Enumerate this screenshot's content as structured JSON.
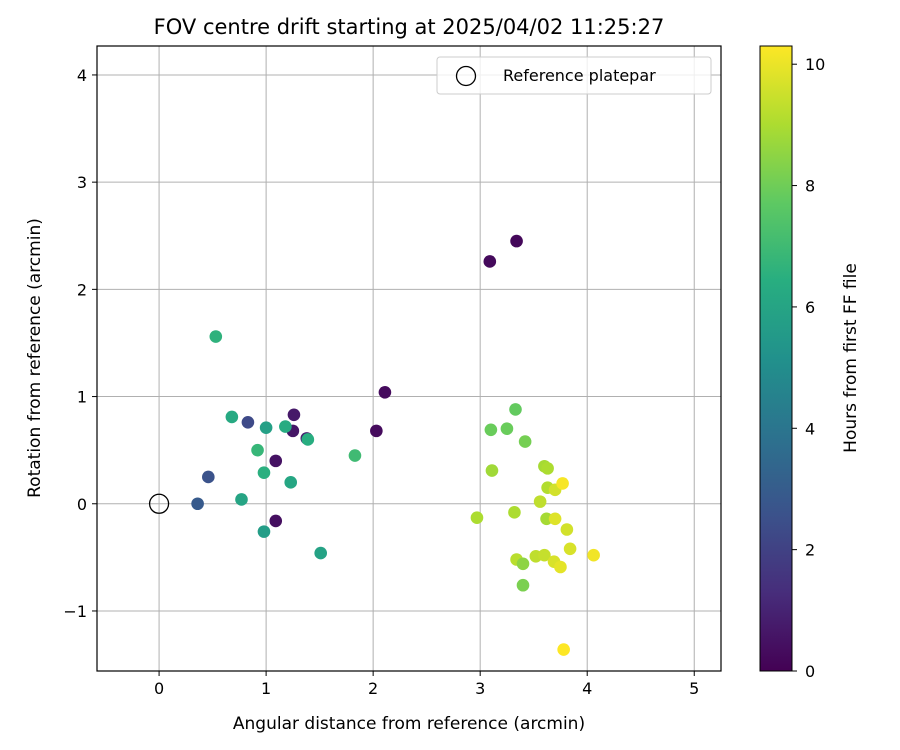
{
  "chart_data": {
    "type": "scatter",
    "title": "FOV centre drift starting at 2025/04/02 11:25:27",
    "xlabel": "Angular distance from reference (arcmin)",
    "ylabel": "Rotation from reference (arcmin)",
    "xlim": [
      -0.58,
      5.25
    ],
    "ylim": [
      -1.56,
      4.27
    ],
    "xticks": [
      0,
      1,
      2,
      3,
      4,
      5
    ],
    "yticks": [
      -1,
      0,
      1,
      2,
      3,
      4
    ],
    "grid": true,
    "legend": {
      "placement": "top-right",
      "entries": [
        "Reference platepar"
      ]
    },
    "reference": {
      "x": 0,
      "y": 0,
      "label": "Reference platepar"
    },
    "colorbar": {
      "label": "Hours from first FF file",
      "colormap": "viridis",
      "range": [
        0,
        10.3
      ],
      "ticks": [
        0,
        2,
        4,
        6,
        8,
        10
      ]
    },
    "points": [
      {
        "x": 3.34,
        "y": 2.45,
        "c": 0.2
      },
      {
        "x": 3.09,
        "y": 2.26,
        "c": 0.25
      },
      {
        "x": 2.11,
        "y": 1.04,
        "c": 0.3
      },
      {
        "x": 2.03,
        "y": 0.68,
        "c": 0.3
      },
      {
        "x": 1.26,
        "y": 0.83,
        "c": 0.7
      },
      {
        "x": 1.25,
        "y": 0.68,
        "c": 0.6
      },
      {
        "x": 1.09,
        "y": 0.4,
        "c": 0.5
      },
      {
        "x": 1.09,
        "y": -0.16,
        "c": 0.4
      },
      {
        "x": 1.38,
        "y": 0.61,
        "c": 0.9
      },
      {
        "x": 0.83,
        "y": 0.76,
        "c": 2.3
      },
      {
        "x": 0.46,
        "y": 0.25,
        "c": 2.6
      },
      {
        "x": 0.36,
        "y": 0.0,
        "c": 2.9
      },
      {
        "x": 0.53,
        "y": 1.56,
        "c": 6.6
      },
      {
        "x": 0.68,
        "y": 0.81,
        "c": 6.2
      },
      {
        "x": 1.0,
        "y": 0.71,
        "c": 5.8
      },
      {
        "x": 0.92,
        "y": 0.5,
        "c": 6.8
      },
      {
        "x": 0.98,
        "y": 0.29,
        "c": 6.5
      },
      {
        "x": 0.77,
        "y": 0.04,
        "c": 6.0
      },
      {
        "x": 0.98,
        "y": -0.26,
        "c": 5.7
      },
      {
        "x": 1.18,
        "y": 0.72,
        "c": 6.3
      },
      {
        "x": 1.39,
        "y": 0.6,
        "c": 6.4
      },
      {
        "x": 1.23,
        "y": 0.2,
        "c": 6.1
      },
      {
        "x": 1.51,
        "y": -0.46,
        "c": 5.9
      },
      {
        "x": 1.83,
        "y": 0.45,
        "c": 7.0
      },
      {
        "x": 3.33,
        "y": 0.88,
        "c": 7.8
      },
      {
        "x": 3.1,
        "y": 0.69,
        "c": 7.9
      },
      {
        "x": 3.25,
        "y": 0.7,
        "c": 7.9
      },
      {
        "x": 3.42,
        "y": 0.58,
        "c": 8.1
      },
      {
        "x": 3.11,
        "y": 0.31,
        "c": 8.8
      },
      {
        "x": 3.6,
        "y": 0.35,
        "c": 8.9
      },
      {
        "x": 3.63,
        "y": 0.33,
        "c": 9.0
      },
      {
        "x": 3.63,
        "y": 0.15,
        "c": 9.1
      },
      {
        "x": 3.7,
        "y": 0.13,
        "c": 9.6
      },
      {
        "x": 3.77,
        "y": 0.19,
        "c": 10.2
      },
      {
        "x": 3.56,
        "y": 0.02,
        "c": 9.3
      },
      {
        "x": 2.97,
        "y": -0.13,
        "c": 9.0
      },
      {
        "x": 3.32,
        "y": -0.08,
        "c": 9.0
      },
      {
        "x": 3.62,
        "y": -0.14,
        "c": 8.9
      },
      {
        "x": 3.7,
        "y": -0.14,
        "c": 9.8
      },
      {
        "x": 3.81,
        "y": -0.24,
        "c": 9.6
      },
      {
        "x": 3.84,
        "y": -0.42,
        "c": 9.7
      },
      {
        "x": 4.06,
        "y": -0.48,
        "c": 10.1
      },
      {
        "x": 3.34,
        "y": -0.52,
        "c": 9.2
      },
      {
        "x": 3.52,
        "y": -0.49,
        "c": 9.3
      },
      {
        "x": 3.6,
        "y": -0.48,
        "c": 9.4
      },
      {
        "x": 3.69,
        "y": -0.54,
        "c": 9.7
      },
      {
        "x": 3.75,
        "y": -0.59,
        "c": 9.9
      },
      {
        "x": 3.4,
        "y": -0.56,
        "c": 8.5
      },
      {
        "x": 3.4,
        "y": -0.76,
        "c": 8.2
      },
      {
        "x": 3.78,
        "y": -1.36,
        "c": 10.3
      }
    ]
  }
}
